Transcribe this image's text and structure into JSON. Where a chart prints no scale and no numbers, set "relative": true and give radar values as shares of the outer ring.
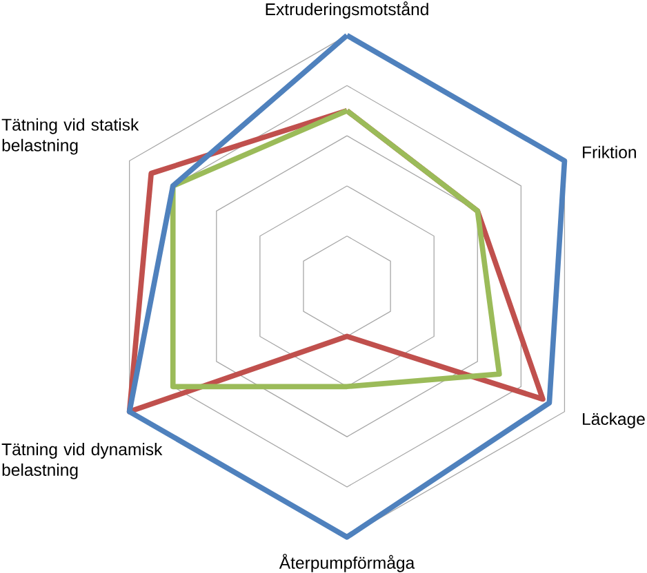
{
  "chart_data": {
    "type": "radar",
    "relative": true,
    "grid": true,
    "categories": [
      "Extruderingsmotstånd",
      "Friktion",
      "Läckage",
      "Återpumpförmåga",
      "Tätning vid dynamisk belastning",
      "Tätning vid statisk belastning"
    ],
    "series": [
      {
        "color": "#c0504d",
        "values": [
          0.7,
          0.6,
          0.9,
          0.2,
          1.0,
          0.9
        ]
      },
      {
        "color": "#9bbb59",
        "values": [
          0.7,
          0.6,
          0.7,
          0.4,
          0.8,
          0.8
        ]
      },
      {
        "color": "#4f81bd",
        "values": [
          1.0,
          1.0,
          0.93,
          1.0,
          1.0,
          0.8
        ]
      }
    ]
  }
}
